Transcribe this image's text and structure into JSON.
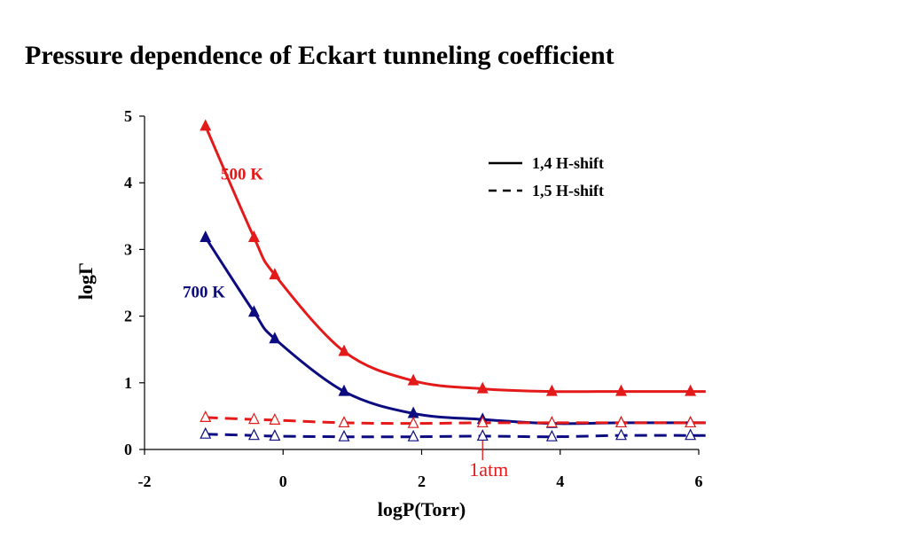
{
  "title": "Pressure dependence of Eckart tunneling coefficient",
  "colors": {
    "red": "#e41a1a",
    "navy": "#0c0c80",
    "axis": "#000000"
  },
  "chart_data": {
    "type": "line",
    "title": "Pressure dependence of Eckart tunneling coefficient",
    "xlabel": "logP(Torr)",
    "ylabel": "logΓ",
    "xlim": [
      -2,
      6
    ],
    "ylim": [
      0,
      5
    ],
    "xticks": [
      -2,
      0,
      2,
      4,
      6
    ],
    "xtick_labels": [
      "-2",
      "0",
      "2",
      "4",
      "6"
    ],
    "yticks": [
      0,
      1,
      2,
      3,
      4,
      5
    ],
    "ytick_labels": [
      "0",
      "1",
      "2",
      "3",
      "4",
      "5"
    ],
    "grid": false,
    "legend_position": "top-right",
    "legend": [
      {
        "label": "1,4 H-shift",
        "style": "solid"
      },
      {
        "label": "1,5 H-shift",
        "style": "dashed"
      }
    ],
    "series": [
      {
        "temperature": "500 K",
        "shift": "1,4 H-shift",
        "color": "#e41a1a",
        "style": "solid",
        "marker": "filled-triangle",
        "x": [
          -1.12,
          -0.42,
          -0.12,
          0.88,
          1.88,
          2.88,
          3.88,
          4.88,
          5.88
        ],
        "y": [
          4.85,
          3.18,
          2.62,
          1.47,
          1.03,
          0.91,
          0.87,
          0.87,
          0.87
        ]
      },
      {
        "temperature": "700 K",
        "shift": "1,4 H-shift",
        "color": "#0c0c80",
        "style": "solid",
        "marker": "filled-triangle",
        "x": [
          -1.12,
          -0.42,
          -0.12,
          0.88,
          1.88,
          2.88,
          3.88,
          4.88,
          5.88
        ],
        "y": [
          3.18,
          2.06,
          1.66,
          0.87,
          0.54,
          0.45,
          0.39,
          0.4,
          0.4
        ]
      },
      {
        "temperature": "500 K",
        "shift": "1,5 H-shift",
        "color": "#e41a1a",
        "style": "dashed",
        "marker": "open-triangle",
        "x": [
          -1.12,
          -0.42,
          -0.12,
          0.88,
          1.88,
          2.88,
          3.88,
          4.88,
          5.88
        ],
        "y": [
          0.48,
          0.45,
          0.44,
          0.4,
          0.39,
          0.4,
          0.4,
          0.4,
          0.4
        ]
      },
      {
        "temperature": "700 K",
        "shift": "1,5 H-shift",
        "color": "#0c0c80",
        "style": "dashed",
        "marker": "open-triangle",
        "x": [
          -1.12,
          -0.42,
          -0.12,
          0.88,
          1.88,
          2.88,
          3.88,
          4.88,
          5.88
        ],
        "y": [
          0.23,
          0.21,
          0.2,
          0.19,
          0.19,
          0.2,
          0.19,
          0.21,
          0.21
        ]
      }
    ],
    "series_labels": [
      {
        "text": "500 K",
        "color": "#e41a1a",
        "x": -0.9,
        "y": 4.05
      },
      {
        "text": "700 K",
        "color": "#0c0c80",
        "x": -1.45,
        "y": 2.28
      }
    ],
    "annotations": [
      {
        "text": "1atm",
        "color": "#e41a1a",
        "x": 2.88,
        "marker": "vertical-line"
      }
    ]
  }
}
